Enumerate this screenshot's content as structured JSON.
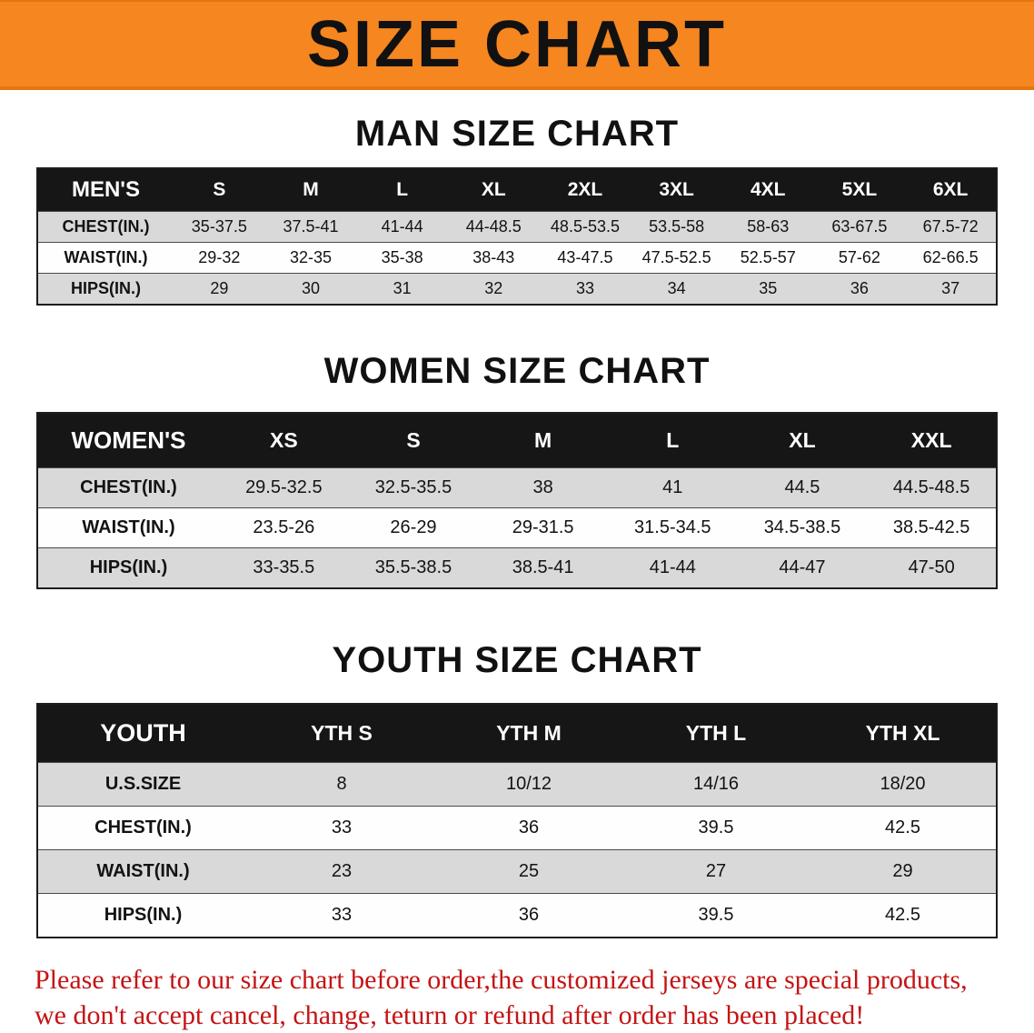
{
  "banner": {
    "title": "SIZE CHART"
  },
  "colors": {
    "banner_orange": "#f6861f",
    "table_header_black": "#161616",
    "row_gray": "#d9d9d9",
    "footer_red": "#c41414"
  },
  "sections": [
    {
      "heading": "MAN SIZE CHART",
      "table": {
        "corner": "MEN'S",
        "columns": [
          "S",
          "M",
          "L",
          "XL",
          "2XL",
          "3XL",
          "4XL",
          "5XL",
          "6XL"
        ],
        "rows": [
          {
            "label": "CHEST(IN.)",
            "values": [
              "35-37.5",
              "37.5-41",
              "41-44",
              "44-48.5",
              "48.5-53.5",
              "53.5-58",
              "58-63",
              "63-67.5",
              "67.5-72"
            ]
          },
          {
            "label": "WAIST(IN.)",
            "values": [
              "29-32",
              "32-35",
              "35-38",
              "38-43",
              "43-47.5",
              "47.5-52.5",
              "52.5-57",
              "57-62",
              "62-66.5"
            ]
          },
          {
            "label": "HIPS(IN.)",
            "values": [
              "29",
              "30",
              "31",
              "32",
              "33",
              "34",
              "35",
              "36",
              "37"
            ]
          }
        ]
      }
    },
    {
      "heading": "WOMEN SIZE CHART",
      "table": {
        "corner": "WOMEN'S",
        "columns": [
          "XS",
          "S",
          "M",
          "L",
          "XL",
          "XXL"
        ],
        "rows": [
          {
            "label": "CHEST(IN.)",
            "values": [
              "29.5-32.5",
              "32.5-35.5",
              "38",
              "41",
              "44.5",
              "44.5-48.5"
            ]
          },
          {
            "label": "WAIST(IN.)",
            "values": [
              "23.5-26",
              "26-29",
              "29-31.5",
              "31.5-34.5",
              "34.5-38.5",
              "38.5-42.5"
            ]
          },
          {
            "label": "HIPS(IN.)",
            "values": [
              "33-35.5",
              "35.5-38.5",
              "38.5-41",
              "41-44",
              "44-47",
              "47-50"
            ]
          }
        ]
      }
    },
    {
      "heading": "YOUTH SIZE CHART",
      "table": {
        "corner": "YOUTH",
        "columns": [
          "YTH S",
          "YTH M",
          "YTH L",
          "YTH XL"
        ],
        "rows": [
          {
            "label": "U.S.SIZE",
            "values": [
              "8",
              "10/12",
              "14/16",
              "18/20"
            ]
          },
          {
            "label": "CHEST(IN.)",
            "values": [
              "33",
              "36",
              "39.5",
              "42.5"
            ]
          },
          {
            "label": "WAIST(IN.)",
            "values": [
              "23",
              "25",
              "27",
              "29"
            ]
          },
          {
            "label": "HIPS(IN.)",
            "values": [
              "33",
              "36",
              "39.5",
              "42.5"
            ]
          }
        ]
      }
    }
  ],
  "footer": {
    "line1": "Please refer to our size chart before order,the customized jerseys are special products,",
    "line2": "we don't accept cancel, change, teturn or refund after order has been placed!"
  }
}
